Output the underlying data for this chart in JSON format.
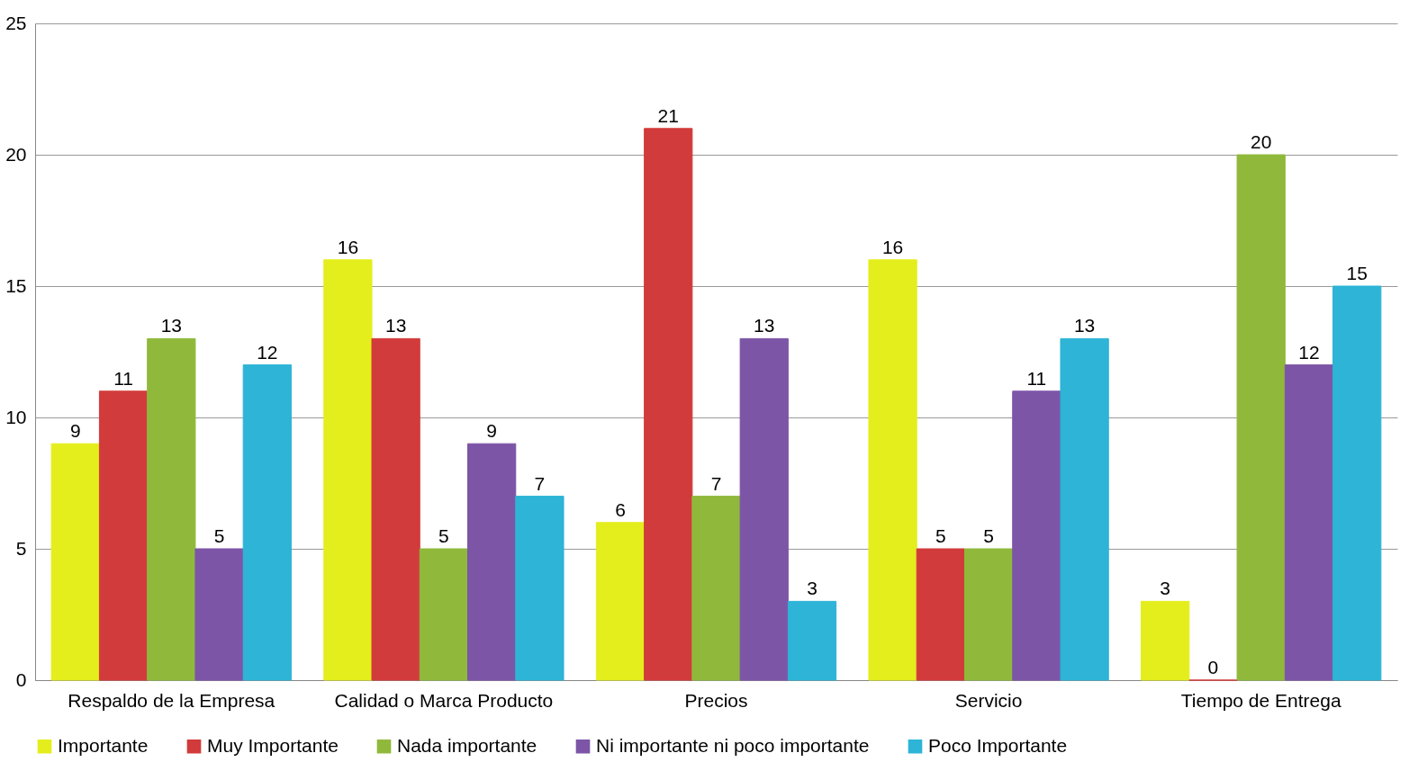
{
  "chart_data": {
    "type": "bar",
    "categories": [
      "Respaldo de la Empresa",
      "Calidad o Marca Producto",
      "Precios",
      "Servicio",
      "Tiempo de Entrega"
    ],
    "series": [
      {
        "name": "Importante",
        "color": "#e4ee1c",
        "values": [
          9,
          16,
          6,
          16,
          3
        ]
      },
      {
        "name": "Muy Importante",
        "color": "#d23b3b",
        "values": [
          11,
          13,
          21,
          5,
          0
        ]
      },
      {
        "name": "Nada importante",
        "color": "#90b93c",
        "values": [
          13,
          5,
          7,
          5,
          20
        ]
      },
      {
        "name": "Ni importante ni poco importante",
        "color": "#7d55a7",
        "values": [
          5,
          9,
          13,
          11,
          12
        ]
      },
      {
        "name": "Poco Importante",
        "color": "#2db4d6",
        "values": [
          12,
          7,
          3,
          13,
          15
        ]
      }
    ],
    "ylim": [
      0,
      25
    ],
    "yticks": [
      0,
      5,
      10,
      15,
      20,
      25
    ],
    "grid": "y",
    "legend": "bottom",
    "data_labels": true
  }
}
